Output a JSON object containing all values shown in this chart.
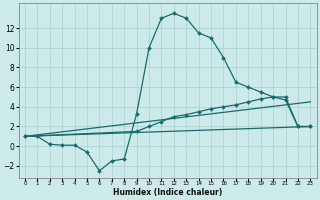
{
  "xlabel": "Humidex (Indice chaleur)",
  "background_color": "#cceaea",
  "grid_color": "#aacece",
  "line_color": "#1a6b6b",
  "xlim": [
    -0.5,
    23.5
  ],
  "ylim": [
    -3.2,
    14.5
  ],
  "yticks": [
    -2,
    0,
    2,
    4,
    6,
    8,
    10,
    12
  ],
  "xticks": [
    0,
    1,
    2,
    3,
    4,
    5,
    6,
    7,
    8,
    9,
    10,
    11,
    12,
    13,
    14,
    15,
    16,
    17,
    18,
    19,
    20,
    21,
    22,
    23
  ],
  "line1_x": [
    0,
    1,
    2,
    3,
    4,
    5,
    6,
    7,
    8,
    9,
    10,
    11,
    12,
    13,
    14,
    15,
    16,
    17,
    18,
    19,
    20,
    21,
    22,
    23
  ],
  "line1_y": [
    1,
    1,
    0.2,
    0.1,
    0.1,
    -0.6,
    -2.5,
    -1.5,
    -1.3,
    3.3,
    10.0,
    13.0,
    13.5,
    13.0,
    11.5,
    11.0,
    9.0,
    6.5,
    6.0,
    5.5,
    5.0,
    4.7,
    2.0,
    2.0
  ],
  "line2_x": [
    0,
    9,
    10,
    11,
    12,
    13,
    14,
    15,
    16,
    17,
    18,
    19,
    20,
    21,
    22,
    23
  ],
  "line2_y": [
    1,
    1.5,
    2.0,
    2.5,
    3.0,
    3.2,
    3.5,
    3.8,
    4.0,
    4.2,
    4.5,
    4.8,
    5.0,
    5.0,
    2.0,
    2.0
  ],
  "line3_x": [
    0,
    23
  ],
  "line3_y": [
    1,
    4.5
  ],
  "line4_x": [
    0,
    23
  ],
  "line4_y": [
    1,
    2.0
  ]
}
